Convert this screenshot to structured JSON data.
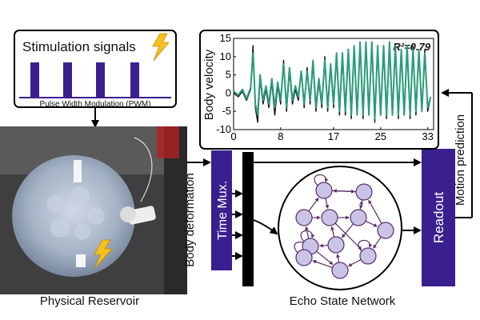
{
  "stimulation": {
    "title": "Stimulation signals",
    "pwm_label": "Pulse Width Modulation (PWM)",
    "pulse_count": 4,
    "icon": "lightning-bolt-icon"
  },
  "reservoir": {
    "label": "Physical Reservoir",
    "icon": "lightning-bolt-icon"
  },
  "body_deformation_label": "Body deformation",
  "time_mux_label": "Time Mux.",
  "esn_label": "Echo State Network",
  "readout_label": "Readout",
  "motion_prediction_label": "Motion prediction",
  "colors": {
    "accent_purple": "#3a1f8f",
    "node_fill": "#c9c4e6",
    "node_stroke": "#5a2d6b",
    "prediction_line": "#2a9d7a",
    "measured_line": "#111111",
    "bolt_yellow": "#f5c21b"
  },
  "chart_data": {
    "type": "line",
    "ylabel": "Body velocity",
    "annotation": "R²=0.79",
    "xlim": [
      0,
      34
    ],
    "ylim": [
      -10,
      15
    ],
    "xticks": [
      0,
      8,
      17,
      25,
      33
    ],
    "yticks": [
      15,
      10,
      5,
      0,
      -5,
      -10
    ],
    "series": [
      {
        "role": "measured",
        "x": [
          0,
          0.8,
          1.5,
          2.2,
          2.9,
          3.3,
          3.7,
          4.1,
          4.5,
          5.0,
          5.5,
          6.0,
          6.5,
          7.0,
          7.5,
          8.0,
          8.5,
          9.0,
          9.5,
          10.0,
          10.5,
          11.0,
          11.5,
          12.0,
          12.5,
          13.0,
          13.5,
          14.0,
          14.5,
          15.0,
          15.5,
          16.0,
          16.5,
          17.0,
          17.5,
          18.0,
          18.5,
          19.0,
          19.5,
          20.0,
          20.5,
          21.0,
          21.5,
          22.0,
          22.5,
          23.0,
          23.5,
          24.0,
          24.5,
          25.0,
          25.5,
          26.0,
          26.5,
          27.0,
          27.5,
          28.0,
          28.5,
          29.0,
          29.5,
          30.0,
          30.5,
          31.0,
          31.5,
          32.0,
          32.5,
          33.0,
          33.5
        ],
        "values": [
          0,
          -1,
          0.5,
          -2,
          1,
          13,
          -4,
          -8,
          4,
          -3,
          1,
          -4,
          3,
          -6,
          2,
          -3,
          9,
          -5,
          6,
          -3,
          1,
          -2,
          6,
          -4,
          7,
          -3,
          8,
          -5,
          3,
          -4,
          10,
          -5,
          7,
          -4,
          10,
          -6,
          10,
          -6,
          11,
          -7,
          12,
          -6,
          13,
          -7,
          14,
          -6,
          13,
          -8,
          13,
          -6,
          12,
          -7,
          13,
          -6,
          12,
          -7,
          11,
          -6,
          12,
          -7,
          13,
          -6,
          11,
          -5,
          12,
          -5,
          -1
        ]
      },
      {
        "role": "prediction",
        "x": [
          0,
          0.8,
          1.5,
          2.2,
          2.9,
          3.3,
          3.7,
          4.1,
          4.5,
          5.0,
          5.5,
          6.0,
          6.5,
          7.0,
          7.5,
          8.0,
          8.5,
          9.0,
          9.5,
          10.0,
          10.5,
          11.0,
          11.5,
          12.0,
          12.5,
          13.0,
          13.5,
          14.0,
          14.5,
          15.0,
          15.5,
          16.0,
          16.5,
          17.0,
          17.5,
          18.0,
          18.5,
          19.0,
          19.5,
          20.0,
          20.5,
          21.0,
          21.5,
          22.0,
          22.5,
          23.0,
          23.5,
          24.0,
          24.5,
          25.0,
          25.5,
          26.0,
          26.5,
          27.0,
          27.5,
          28.0,
          28.5,
          29.0,
          29.5,
          30.0,
          30.5,
          31.0,
          31.5,
          32.0,
          32.5,
          33.0,
          33.5
        ],
        "values": [
          0.5,
          -0.5,
          1,
          -1.5,
          1.5,
          11,
          -3,
          -6,
          5,
          -2,
          2,
          -3,
          4,
          -4,
          3,
          -2,
          8,
          -4,
          7,
          -2,
          2,
          -1,
          6,
          -3,
          6,
          -2,
          9,
          -4,
          4,
          -3,
          9,
          -4,
          8,
          -3,
          11,
          -5,
          11,
          -5,
          12,
          -6,
          13,
          -6,
          14,
          -6,
          14,
          -6,
          14,
          -7,
          13,
          -6,
          13,
          -6,
          14,
          -6,
          13,
          -6,
          12,
          -6,
          13,
          -6,
          12,
          -5,
          12,
          -5,
          11,
          -4,
          -1
        ]
      }
    ]
  }
}
